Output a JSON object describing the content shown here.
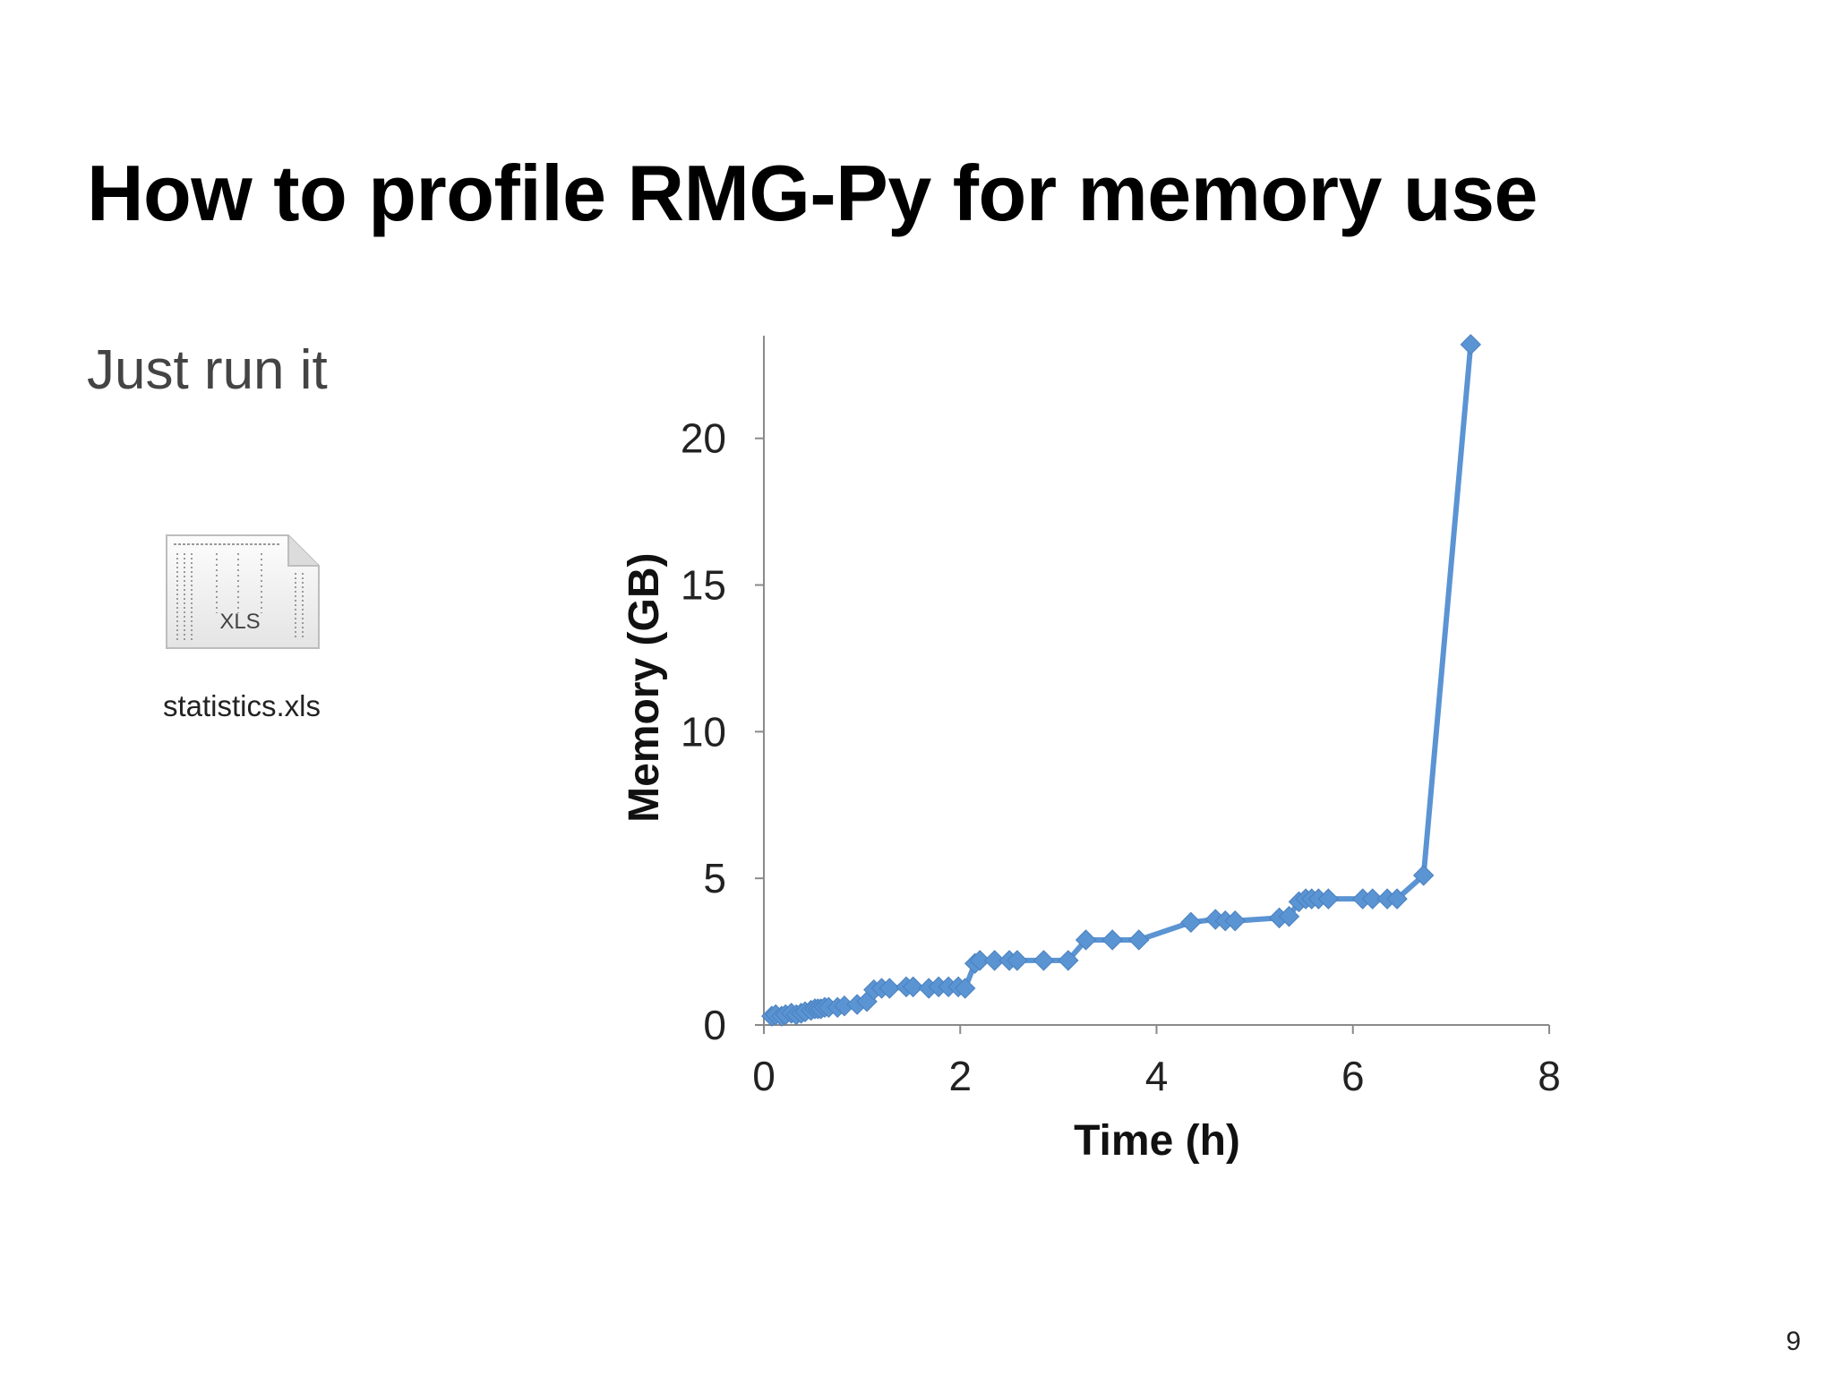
{
  "slide": {
    "title": "How to profile RMG-Py for memory use",
    "subtitle": "Just run it",
    "page_number": "9"
  },
  "file": {
    "icon": "xls-file-icon",
    "badge": "XLS",
    "name": "statistics.xls"
  },
  "chart_data": {
    "type": "line",
    "xlabel": "Time (h)",
    "ylabel": "Memory (GB)",
    "xlim": [
      0,
      8
    ],
    "ylim": [
      0,
      23.5
    ],
    "xticks": [
      0,
      2,
      4,
      6,
      8
    ],
    "yticks": [
      0,
      5,
      10,
      15,
      20
    ],
    "grid": false,
    "legend": "none",
    "color": "#5B94D3",
    "series": [
      {
        "name": "",
        "x": [
          0.08,
          0.12,
          0.18,
          0.22,
          0.28,
          0.33,
          0.38,
          0.42,
          0.48,
          0.52,
          0.55,
          0.58,
          0.62,
          0.66,
          0.75,
          0.82,
          0.95,
          1.05,
          1.12,
          1.2,
          1.28,
          1.45,
          1.52,
          1.68,
          1.78,
          1.88,
          1.98,
          2.05,
          2.15,
          2.2,
          2.35,
          2.5,
          2.58,
          2.85,
          3.1,
          3.28,
          3.55,
          3.82,
          4.35,
          4.6,
          4.7,
          4.8,
          5.25,
          5.35,
          5.45,
          5.52,
          5.58,
          5.65,
          5.75,
          6.1,
          6.2,
          6.35,
          6.45,
          6.72,
          7.2
        ],
        "y": [
          0.3,
          0.35,
          0.3,
          0.35,
          0.4,
          0.35,
          0.4,
          0.45,
          0.5,
          0.55,
          0.55,
          0.55,
          0.6,
          0.6,
          0.6,
          0.65,
          0.7,
          0.8,
          1.2,
          1.25,
          1.25,
          1.3,
          1.3,
          1.25,
          1.3,
          1.3,
          1.3,
          1.25,
          2.1,
          2.2,
          2.2,
          2.2,
          2.2,
          2.2,
          2.2,
          2.9,
          2.9,
          2.9,
          3.5,
          3.6,
          3.55,
          3.55,
          3.65,
          3.7,
          4.2,
          4.3,
          4.3,
          4.3,
          4.3,
          4.3,
          4.3,
          4.3,
          4.3,
          5.1,
          23.2
        ]
      }
    ]
  }
}
